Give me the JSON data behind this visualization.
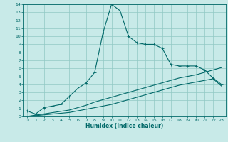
{
  "title": "",
  "xlabel": "Humidex (Indice chaleur)",
  "ylabel": "",
  "bg_color": "#c8eae8",
  "grid_color": "#90c8c4",
  "line_color": "#006868",
  "xlim": [
    -0.5,
    23.5
  ],
  "ylim": [
    0,
    14
  ],
  "xticks": [
    0,
    1,
    2,
    3,
    4,
    5,
    6,
    7,
    8,
    9,
    10,
    11,
    12,
    13,
    14,
    15,
    16,
    17,
    18,
    19,
    20,
    21,
    22,
    23
  ],
  "yticks": [
    0,
    1,
    2,
    3,
    4,
    5,
    6,
    7,
    8,
    9,
    10,
    11,
    12,
    13,
    14
  ],
  "curve1_x": [
    0,
    1,
    2,
    3,
    4,
    5,
    6,
    7,
    8,
    9,
    10,
    11,
    12,
    13,
    14,
    15,
    16,
    17,
    18,
    19,
    20,
    21,
    22,
    23
  ],
  "curve1_y": [
    0.7,
    0.3,
    1.1,
    1.3,
    1.5,
    2.5,
    3.5,
    4.2,
    5.5,
    10.5,
    14.0,
    13.2,
    10.0,
    9.2,
    9.0,
    9.0,
    8.5,
    6.5,
    6.3,
    6.3,
    6.3,
    5.8,
    4.8,
    4.0
  ],
  "curve2_x": [
    0,
    5,
    6,
    7,
    8,
    9,
    10,
    11,
    12,
    13,
    14,
    15,
    16,
    17,
    18,
    19,
    20,
    21,
    22,
    23
  ],
  "curve2_y": [
    0.0,
    0.8,
    1.1,
    1.4,
    1.8,
    2.1,
    2.4,
    2.7,
    3.0,
    3.3,
    3.6,
    3.9,
    4.2,
    4.5,
    4.8,
    5.0,
    5.2,
    5.5,
    5.8,
    6.1
  ],
  "curve3_x": [
    0,
    5,
    6,
    7,
    8,
    9,
    10,
    11,
    12,
    13,
    14,
    15,
    16,
    17,
    18,
    19,
    20,
    21,
    22,
    23
  ],
  "curve3_y": [
    0.0,
    0.5,
    0.7,
    0.9,
    1.1,
    1.3,
    1.5,
    1.8,
    2.1,
    2.4,
    2.7,
    3.0,
    3.3,
    3.6,
    3.9,
    4.1,
    4.3,
    4.5,
    4.7,
    3.8
  ],
  "tick_fontsize": 4.5,
  "xlabel_fontsize": 5.5
}
